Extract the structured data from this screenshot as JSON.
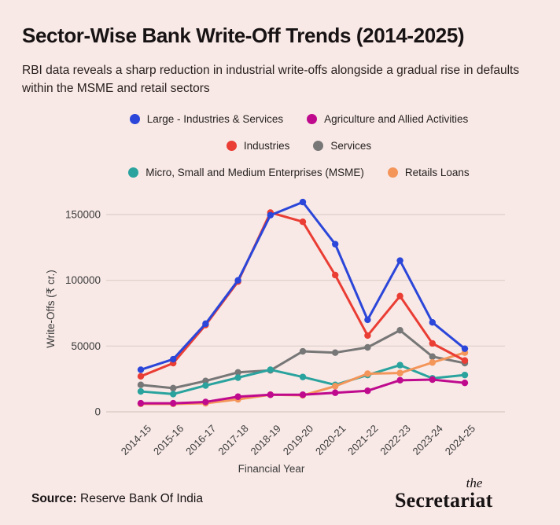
{
  "header": {
    "title": "Sector-Wise Bank Write-Off Trends (2014-2025)",
    "subtitle": "RBI data reveals a sharp reduction in industrial write-offs alongside a gradual rise in defaults within the MSME and retail sectors"
  },
  "colors": {
    "background": "#f8e9e6",
    "grid": "#ddcfc9",
    "zero_line": "#d7c8c2",
    "axis_text": "#3b3b3b",
    "legend_text": "#262220"
  },
  "chart_data": {
    "type": "line",
    "title": "Sector-Wise Bank Write-Off Trends (2014-2025)",
    "xlabel": "Financial Year",
    "ylabel": "Write-Offs (₹ cr.)",
    "ylim": [
      0,
      165000
    ],
    "yticks": [
      0,
      50000,
      100000,
      150000
    ],
    "grid": true,
    "legend_position": "top",
    "categories": [
      "2014-15",
      "2015-16",
      "2016-17",
      "2017-18",
      "2018-19",
      "2019-20",
      "2020-21",
      "2021-22",
      "2022-23",
      "2023-24",
      "2024-25"
    ],
    "series": [
      {
        "name": "Services",
        "color": "#777777",
        "values": [
          20500,
          18000,
          23500,
          30000,
          31500,
          46000,
          45000,
          49000,
          62000,
          42000,
          37000
        ]
      },
      {
        "name": "Micro, Small and Medium Enterprises (MSME)",
        "color": "#2aa39e",
        "values": [
          15500,
          13500,
          20000,
          26000,
          32000,
          26500,
          20500,
          28000,
          35500,
          25500,
          28000
        ]
      },
      {
        "name": "Retails Loans",
        "color": "#f4955a",
        "values": [
          6000,
          6000,
          6500,
          9500,
          13000,
          12500,
          19500,
          29000,
          29500,
          37500,
          45000
        ]
      },
      {
        "name": "Agriculture and Allied Activities",
        "color": "#bf0a8e",
        "values": [
          6500,
          6500,
          7500,
          11500,
          13000,
          13000,
          14500,
          16000,
          24000,
          24500,
          22000
        ]
      },
      {
        "name": "Industries",
        "color": "#ea3d34",
        "values": [
          27000,
          37000,
          66000,
          99000,
          151500,
          144500,
          104000,
          58000,
          88000,
          52000,
          39000
        ]
      },
      {
        "name": "Large - Industries & Services",
        "color": "#2b46d9",
        "values": [
          32000,
          40000,
          67000,
          100000,
          149500,
          159500,
          127500,
          70000,
          115000,
          68000,
          48000
        ]
      }
    ],
    "legend_rows": [
      [
        "Large - Industries & Services",
        "Agriculture and Allied Activities"
      ],
      [
        "Industries",
        "Services"
      ],
      [
        "Micro, Small and Medium Enterprises (MSME)",
        "Retails Loans"
      ]
    ]
  },
  "footer": {
    "source_label": "Source:",
    "source_value": "Reserve Bank Of India",
    "logo_top": "the",
    "logo_bottom": "Secretariat"
  }
}
